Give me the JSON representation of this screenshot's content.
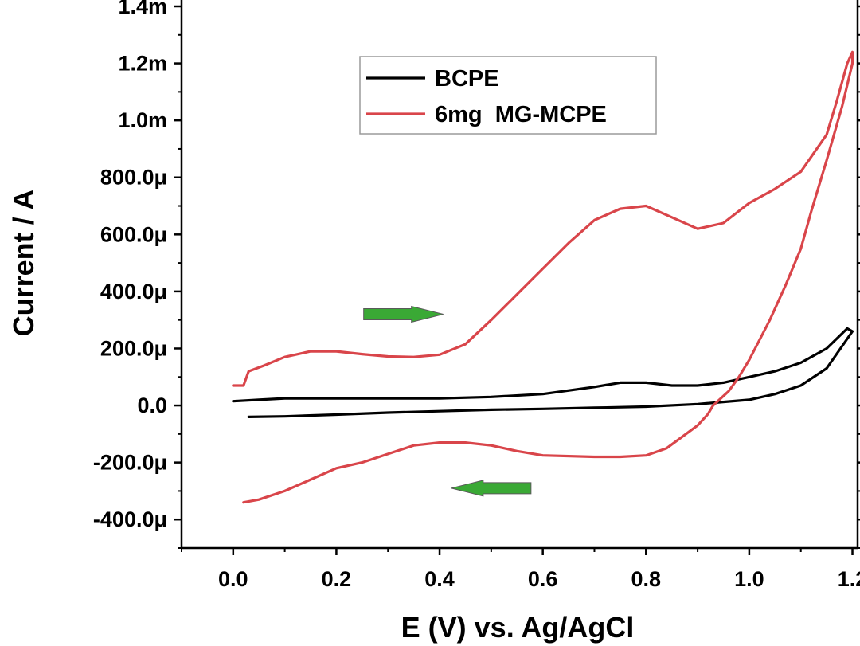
{
  "chart_data": {
    "type": "line",
    "title": "",
    "xlabel": "E (V) vs. Ag/AgCl",
    "ylabel": "Current / A",
    "xlim": [
      -0.1,
      1.21
    ],
    "ylim": [
      -0.0005,
      0.0014
    ],
    "x_ticks": [
      0.0,
      0.2,
      0.4,
      0.6,
      0.8,
      1.0,
      1.2
    ],
    "x_tick_labels": [
      "0.0",
      "0.2",
      "0.4",
      "0.6",
      "0.8",
      "1.0",
      "1.2"
    ],
    "y_ticks": [
      -0.0004,
      -0.0002,
      0.0,
      0.0002,
      0.0004,
      0.0006,
      0.0008,
      0.001,
      0.0012,
      0.0014
    ],
    "y_tick_labels": [
      "-400.0μ",
      "-200.0μ",
      "0.0",
      "200.0μ",
      "400.0μ",
      "600.0μ",
      "800.0μ",
      "1.0m",
      "1.2m",
      "1.4m"
    ],
    "legend_position": "top-center",
    "series": [
      {
        "name": "BCPE",
        "color": "#000000",
        "points": [
          [
            0.03,
            -4e-05
          ],
          [
            0.1,
            -3.8e-05
          ],
          [
            0.2,
            -3.2e-05
          ],
          [
            0.3,
            -2.5e-05
          ],
          [
            0.4,
            -2e-05
          ],
          [
            0.5,
            -1.5e-05
          ],
          [
            0.6,
            -1.2e-05
          ],
          [
            0.7,
            -8e-06
          ],
          [
            0.8,
            -4e-06
          ],
          [
            0.9,
            5e-06
          ],
          [
            1.0,
            2e-05
          ],
          [
            1.05,
            4e-05
          ],
          [
            1.1,
            7e-05
          ],
          [
            1.15,
            0.00013
          ],
          [
            1.2,
            0.00026
          ],
          [
            1.19,
            0.00027
          ],
          [
            1.15,
            0.0002
          ],
          [
            1.1,
            0.00015
          ],
          [
            1.05,
            0.00012
          ],
          [
            1.0,
            0.0001
          ],
          [
            0.95,
            8e-05
          ],
          [
            0.9,
            7e-05
          ],
          [
            0.85,
            7e-05
          ],
          [
            0.8,
            8e-05
          ],
          [
            0.75,
            8e-05
          ],
          [
            0.7,
            6.5e-05
          ],
          [
            0.6,
            4e-05
          ],
          [
            0.5,
            3e-05
          ],
          [
            0.4,
            2.5e-05
          ],
          [
            0.3,
            2.5e-05
          ],
          [
            0.2,
            2.5e-05
          ],
          [
            0.1,
            2.5e-05
          ],
          [
            0.05,
            2e-05
          ],
          [
            0.0,
            1.5e-05
          ]
        ]
      },
      {
        "name": "6mg  MG-MCPE",
        "color": "#d9454a",
        "points": [
          [
            0.0,
            7e-05
          ],
          [
            0.02,
            7e-05
          ],
          [
            0.03,
            0.00012
          ],
          [
            0.06,
            0.00014
          ],
          [
            0.1,
            0.00017
          ],
          [
            0.15,
            0.00019
          ],
          [
            0.2,
            0.00019
          ],
          [
            0.25,
            0.00018
          ],
          [
            0.3,
            0.000172
          ],
          [
            0.35,
            0.00017
          ],
          [
            0.4,
            0.000178
          ],
          [
            0.45,
            0.000215
          ],
          [
            0.5,
            0.0003
          ],
          [
            0.55,
            0.00039
          ],
          [
            0.6,
            0.00048
          ],
          [
            0.65,
            0.00057
          ],
          [
            0.7,
            0.00065
          ],
          [
            0.75,
            0.00069
          ],
          [
            0.8,
            0.0007
          ],
          [
            0.85,
            0.00066
          ],
          [
            0.9,
            0.00062
          ],
          [
            0.95,
            0.00064
          ],
          [
            1.0,
            0.00071
          ],
          [
            1.05,
            0.00076
          ],
          [
            1.1,
            0.00082
          ],
          [
            1.15,
            0.00095
          ],
          [
            1.17,
            0.00107
          ],
          [
            1.19,
            0.0012
          ],
          [
            1.2,
            0.00124
          ],
          [
            1.2,
            0.0012
          ],
          [
            1.18,
            0.00105
          ],
          [
            1.15,
            0.00086
          ],
          [
            1.12,
            0.00068
          ],
          [
            1.1,
            0.00055
          ],
          [
            1.07,
            0.00042
          ],
          [
            1.04,
            0.0003
          ],
          [
            1.0,
            0.00016
          ],
          [
            0.98,
            0.0001
          ],
          [
            0.96,
            5e-05
          ],
          [
            0.93,
            0.0
          ],
          [
            0.92,
            -3e-05
          ],
          [
            0.9,
            -7e-05
          ],
          [
            0.87,
            -0.00011
          ],
          [
            0.84,
            -0.00015
          ],
          [
            0.8,
            -0.000175
          ],
          [
            0.75,
            -0.00018
          ],
          [
            0.7,
            -0.00018
          ],
          [
            0.6,
            -0.000175
          ],
          [
            0.55,
            -0.00016
          ],
          [
            0.5,
            -0.00014
          ],
          [
            0.45,
            -0.00013
          ],
          [
            0.4,
            -0.00013
          ],
          [
            0.35,
            -0.00014
          ],
          [
            0.3,
            -0.00017
          ],
          [
            0.25,
            -0.0002
          ],
          [
            0.2,
            -0.00022
          ],
          [
            0.15,
            -0.00026
          ],
          [
            0.1,
            -0.0003
          ],
          [
            0.05,
            -0.00033
          ],
          [
            0.02,
            -0.00034
          ]
        ]
      }
    ],
    "annotations": [
      {
        "type": "arrow",
        "direction": "right",
        "color": "#3aa935",
        "x": 0.33,
        "y": 0.00032
      },
      {
        "type": "arrow",
        "direction": "left",
        "color": "#3aa935",
        "x": 0.5,
        "y": -0.00029
      }
    ]
  }
}
